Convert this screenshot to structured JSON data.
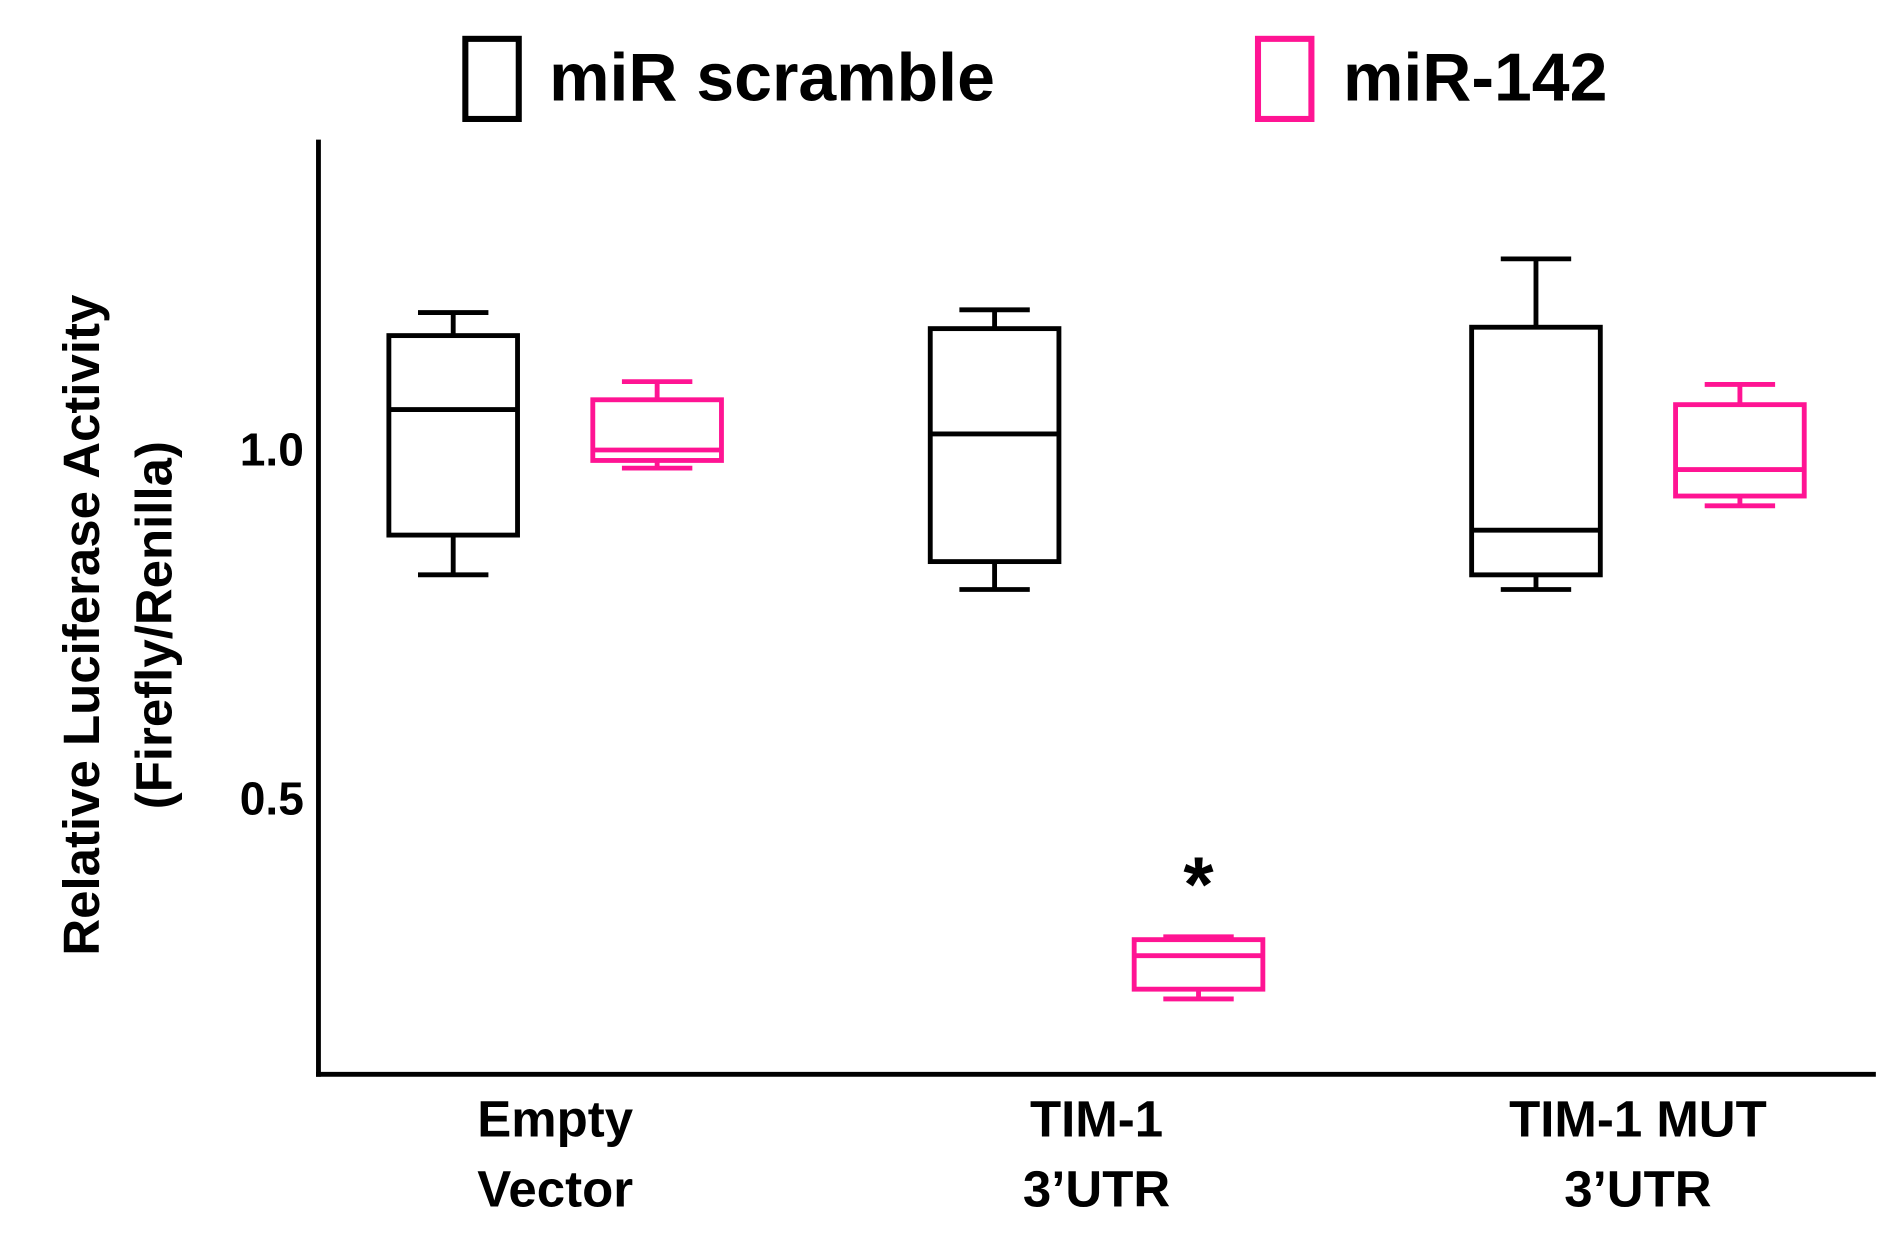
{
  "chart_data": {
    "type": "box",
    "y_label": [
      "Relative Luciferase Activity",
      "(Firefly/Renilla)"
    ],
    "categories": [
      [
        "Empty",
        "Vector"
      ],
      [
        "TIM-1",
        "3’UTR"
      ],
      [
        "TIM-1 MUT",
        "3’UTR"
      ]
    ],
    "series": [
      {
        "name": "miR scramble",
        "color": "#000000",
        "min": [
          0.826,
          0.805,
          0.805
        ],
        "q1": [
          0.883,
          0.845,
          0.826
        ],
        "median": [
          1.063,
          1.028,
          0.89
        ],
        "q3": [
          1.169,
          1.179,
          1.181
        ],
        "max": [
          1.202,
          1.206,
          1.279
        ]
      },
      {
        "name": "miR-142",
        "color": "#ff1493",
        "min": [
          0.979,
          0.218,
          0.925
        ],
        "q1": [
          0.99,
          0.232,
          0.939
        ],
        "median": [
          1.005,
          0.28,
          0.977
        ],
        "q3": [
          1.077,
          0.303,
          1.07
        ],
        "max": [
          1.103,
          0.307,
          1.099
        ]
      }
    ],
    "annotations": [
      {
        "text": "*",
        "category": 1,
        "series": 1
      }
    ],
    "ylim": [
      0.11,
      1.45
    ],
    "yticks": [
      {
        "value": 0.5,
        "label": "0.5"
      },
      {
        "value": 1,
        "label": "1.0"
      }
    ],
    "legend_position": "top"
  }
}
